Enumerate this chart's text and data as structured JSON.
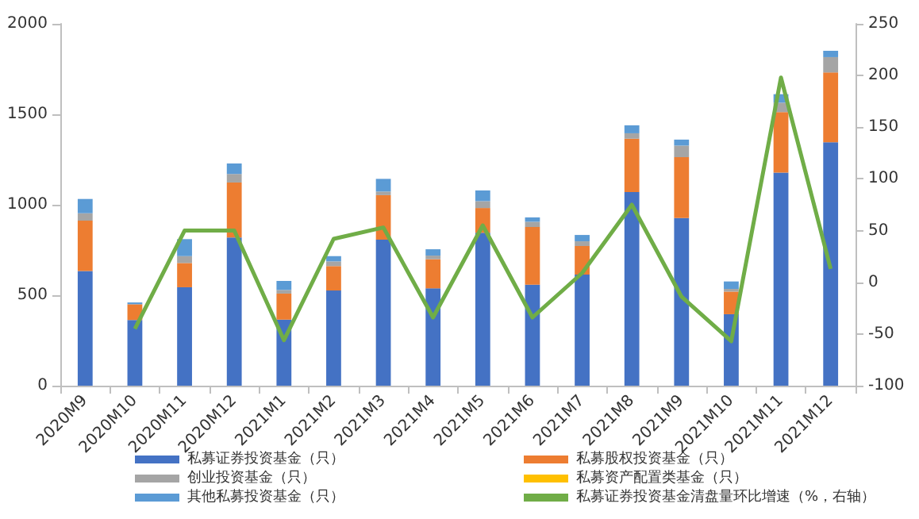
{
  "chart_data": {
    "type": "bar",
    "stacked": true,
    "categories": [
      "2020M9",
      "2020M10",
      "2020M11",
      "2020M12",
      "2021M1",
      "2021M2",
      "2021M3",
      "2021M4",
      "2021M5",
      "2021M6",
      "2021M7",
      "2021M8",
      "2021M9",
      "2021M10",
      "2021M11",
      "2021M12"
    ],
    "series": [
      {
        "name": "私募证券投资基金（只）",
        "color": "#4472c4",
        "values": [
          634,
          363,
          544,
          819,
          365,
          526,
          807,
          538,
          845,
          558,
          614,
          1070,
          927,
          395,
          1178,
          1345
        ]
      },
      {
        "name": "私募股权投资基金（只）",
        "color": "#ed7d31",
        "values": [
          278,
          87,
          134,
          304,
          144,
          135,
          246,
          161,
          137,
          319,
          158,
          295,
          336,
          125,
          334,
          386
        ]
      },
      {
        "name": "创业投资基金（只）",
        "color": "#a5a5a5",
        "values": [
          41,
          null,
          38,
          47,
          20,
          26,
          20,
          20,
          38,
          29,
          26,
          30,
          64,
          15,
          52,
          85
        ]
      },
      {
        "name": "私募资产配置类基金（只）",
        "color": "#ffc000",
        "values": [
          0,
          0,
          0,
          0,
          0,
          0,
          0,
          0,
          0,
          0,
          0,
          0,
          0,
          0,
          0,
          0
        ]
      },
      {
        "name": "其他私募投资基金（只）",
        "color": "#5b9bd5",
        "values": [
          79,
          10,
          94,
          58,
          50,
          29,
          70,
          35,
          59,
          24,
          35,
          44,
          33,
          41,
          47,
          35
        ]
      },
      {
        "name": "私募证券投资基金清盘量环比增速（%，右轴）",
        "type": "line",
        "axis": "y2",
        "color": "#70ad47",
        "values": [
          null,
          -45,
          50,
          50,
          -56,
          42,
          53,
          -34,
          55,
          -34,
          9,
          75,
          -14,
          -57,
          198,
          13
        ]
      }
    ],
    "ylim": [
      0,
      2000
    ],
    "yticks": [
      0,
      500,
      1000,
      1500,
      2000
    ],
    "y2lim": [
      -100,
      250
    ],
    "y2ticks": [
      -100,
      -50,
      0,
      50,
      100,
      150,
      200,
      250
    ],
    "grid": false,
    "legend": "bottom",
    "marker": "none",
    "line_style": "solid"
  }
}
